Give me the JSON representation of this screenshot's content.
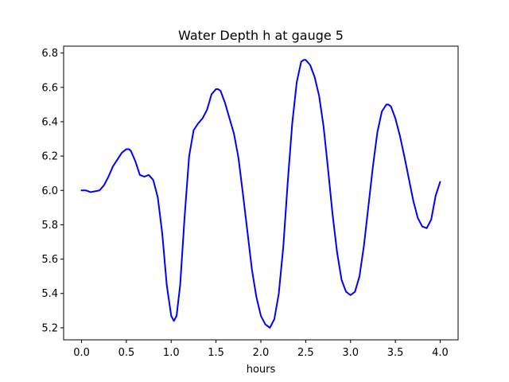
{
  "chart_data": {
    "type": "line",
    "title": "Water Depth h at gauge 5",
    "xlabel": "hours",
    "ylabel": "",
    "xlim": [
      -0.2,
      4.2
    ],
    "ylim": [
      5.13,
      6.84
    ],
    "xticks": [
      0.0,
      0.5,
      1.0,
      1.5,
      2.0,
      2.5,
      3.0,
      3.5,
      4.0
    ],
    "xtick_labels": [
      "0.0",
      "0.5",
      "1.0",
      "1.5",
      "2.0",
      "2.5",
      "3.0",
      "3.5",
      "4.0"
    ],
    "yticks": [
      5.2,
      5.4,
      5.6,
      5.8,
      6.0,
      6.2,
      6.4,
      6.6,
      6.8
    ],
    "ytick_labels": [
      "5.2",
      "5.4",
      "5.6",
      "5.8",
      "6.0",
      "6.2",
      "6.4",
      "6.6",
      "6.8"
    ],
    "grid": false,
    "legend": "none",
    "series": [
      {
        "color": "#0000ff",
        "x": [
          0.0,
          0.05,
          0.1,
          0.15,
          0.2,
          0.25,
          0.3,
          0.35,
          0.4,
          0.45,
          0.5,
          0.53,
          0.55,
          0.6,
          0.65,
          0.7,
          0.75,
          0.8,
          0.85,
          0.9,
          0.95,
          1.0,
          1.03,
          1.06,
          1.1,
          1.15,
          1.2,
          1.25,
          1.3,
          1.35,
          1.4,
          1.45,
          1.5,
          1.52,
          1.55,
          1.6,
          1.65,
          1.7,
          1.75,
          1.8,
          1.85,
          1.9,
          1.95,
          2.0,
          2.05,
          2.1,
          2.15,
          2.2,
          2.25,
          2.3,
          2.35,
          2.4,
          2.45,
          2.48,
          2.5,
          2.55,
          2.6,
          2.65,
          2.7,
          2.75,
          2.8,
          2.85,
          2.9,
          2.95,
          3.0,
          3.05,
          3.1,
          3.15,
          3.2,
          3.25,
          3.3,
          3.35,
          3.4,
          3.42,
          3.45,
          3.5,
          3.55,
          3.6,
          3.65,
          3.7,
          3.75,
          3.8,
          3.85,
          3.9,
          3.95,
          4.0
        ],
        "y": [
          6.0,
          6.0,
          5.99,
          5.995,
          6.0,
          6.03,
          6.08,
          6.14,
          6.18,
          6.22,
          6.24,
          6.24,
          6.23,
          6.17,
          6.09,
          6.08,
          6.09,
          6.06,
          5.96,
          5.75,
          5.45,
          5.27,
          5.24,
          5.27,
          5.45,
          5.85,
          6.2,
          6.35,
          6.39,
          6.42,
          6.47,
          6.56,
          6.59,
          6.59,
          6.58,
          6.51,
          6.42,
          6.33,
          6.19,
          5.98,
          5.76,
          5.54,
          5.38,
          5.27,
          5.22,
          5.2,
          5.25,
          5.4,
          5.67,
          6.05,
          6.39,
          6.63,
          6.75,
          6.76,
          6.76,
          6.73,
          6.66,
          6.55,
          6.37,
          6.12,
          5.86,
          5.64,
          5.48,
          5.41,
          5.39,
          5.41,
          5.5,
          5.68,
          5.91,
          6.14,
          6.34,
          6.46,
          6.5,
          6.5,
          6.49,
          6.42,
          6.32,
          6.2,
          6.07,
          5.94,
          5.84,
          5.79,
          5.78,
          5.83,
          5.97,
          6.05
        ]
      }
    ]
  }
}
